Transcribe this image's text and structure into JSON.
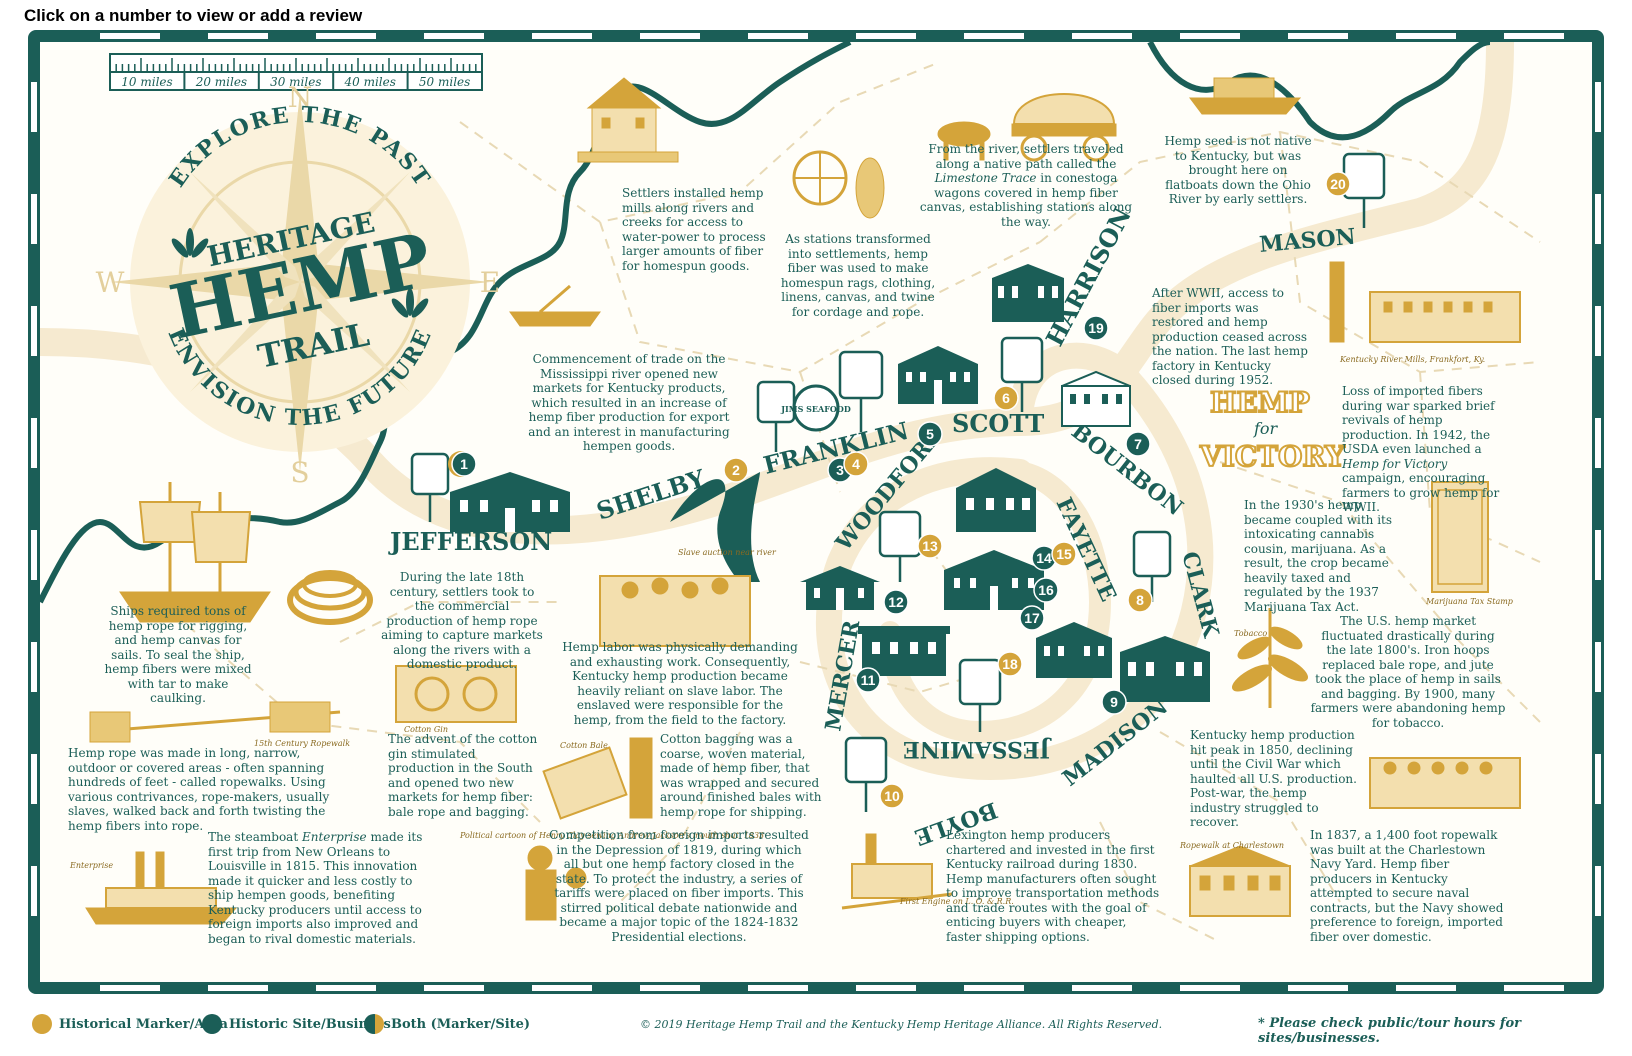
{
  "instruction": "Click on a number to view or add a review",
  "scale": {
    "labels": [
      "10 miles",
      "20 miles",
      "30 miles",
      "40 miles",
      "50 miles"
    ]
  },
  "compass": {
    "north": "N",
    "south": "S",
    "east": "E",
    "west": "W"
  },
  "title": {
    "arc_top": "EXPLORE THE PAST",
    "line1": "HERITAGE",
    "line2": "HEMP",
    "line3": "TRAIL",
    "arc_bottom": "ENVISION THE FUTURE"
  },
  "counties": {
    "jefferson": "JEFFERSON",
    "shelby": "SHELBY",
    "franklin": "FRANKLIN",
    "scott": "SCOTT",
    "harrison": "HARRISON",
    "mason": "MASON",
    "bourbon": "BOURBON",
    "clark": "CLARK",
    "madison": "MADISON",
    "jessamine": "JESSAMINE",
    "boyle": "BOYLE",
    "mercer": "MERCER",
    "woodford": "WOODFORD",
    "fayette": "FAYETTE"
  },
  "notes": {
    "ships": "Ships required tons of hemp rope for rigging, and hemp canvas for sails. To seal the ship, hemp fibers were mixed with tar to make caulking.",
    "late18th": "During the late 18th century, settlers took to the commercial production of hemp rope aiming to capture markets along the rivers with a domestic product.",
    "mississippi": "Commencement of trade on the Mississippi river opened new markets for Kentucky products, which resulted in an increase of hemp fiber production for export and an interest in manufacturing hempen goods.",
    "mills": "Settlers installed hemp mills along rivers and creeks for access to water-power to process larger amounts of fiber for homespun goods.",
    "stations": "As stations transformed into settlements, hemp fiber was used to make homespun rags, clothing, linens, canvas, and twine for cordage and rope.",
    "river_pre": "From the river, settlers traveled along a native path called the ",
    "river_em": "Limestone Trace",
    "river_post": " in conestoga wagons covered in hemp fiber canvas, establishing stations along the way.",
    "seed": "Hemp seed is not native to Kentucky, but was brought here on flatboats down the Ohio River by early settlers.",
    "wwii": "After WWII, access to fiber imports was restored and hemp production ceased across the nation. The last hemp factory in Kentucky closed during 1952.",
    "loss_pre": "Loss of imported fibers during war sparked brief revivals of hemp production. In 1942, the USDA even launched a ",
    "loss_em": "Hemp for Victory",
    "loss_post": " campaign, encouraging farmers to grow hemp for WWII.",
    "1930s": "In the 1930's hemp became coupled with its intoxicating cannabis cousin, marijuana. As a result, the crop became heavily taxed and regulated by the 1937 Marijuana Tax Act.",
    "market": "The U.S. hemp market fluctuated drastically during the late 1800's. Iron hoops replaced bale rope, and jute took the place of hemp in sails and bagging. By 1900, many farmers were abandoning hemp for tobacco.",
    "peak": "Kentucky hemp production hit peak in 1850, declining until the Civil War which haulted all U.S. production. Post-war, the hemp industry struggled to recover.",
    "labor": "Hemp labor was physically demanding and exhausting work. Consequently, Kentucky hemp production became heavily reliant on slave labor. The enslaved were responsible for the hemp, from the field to the factory.",
    "ropewalk": "Hemp rope was made in long, narrow, outdoor or covered areas - often spanning hundreds of feet - called ropewalks. Using various contrivances, rope-makers, usually slaves, walked back and forth twisting the hemp fibers into rope.",
    "gin": "The advent of the cotton gin stimulated production in the South and opened two new markets for hemp fiber: bale rope and bagging.",
    "bagging": "Cotton bagging was a coarse, woven material, made of hemp fiber, that was wrapped and secured around finished bales with hemp rope for shipping.",
    "steamboat_pre": "The steamboat ",
    "steamboat_em": "Enterprise",
    "steamboat_post": " made its first trip from New Orleans to Louisville in 1815. This innovation made it quicker and less costly to ship hempen goods, benefiting Kentucky producers until access to foreign imports also improved and began to rival domestic materials.",
    "competition": "Competition from foreign imports resulted in the Depression of 1819, during which all but one hemp factory closed in the state. To protect the industry, a series of tariffs were placed on fiber imports. This stirred political debate nationwide and became a major topic of the 1824-1832 Presidential elections.",
    "railroad": "Lexington hemp producers chartered and invested in the first Kentucky railroad during 1830. Hemp manufacturers often sought to improve transportation methods and trade routes with the goal of enticing buyers with cheaper, faster shipping options.",
    "navy": "In 1837, a 1,400 foot ropewalk was built at the Charlestown Navy Yard. Hemp fiber producers in Kentucky attempted to secure naval contracts, but the Navy showed preference to foreign, imported fiber over domestic."
  },
  "captions": {
    "enslaved": "Slave auction near river",
    "ropewalk": "15th Century Ropewalk",
    "gin": "Cotton Gin",
    "bale": "Cotton Bale",
    "tobacco": "Tobacco",
    "mill": "Kentucky River Mills, Frankfort, Ky.",
    "enterprise": "Enterprise",
    "engine": "First Engine on L. O. & R.R.",
    "charlestown": "Ropewalk at Charlestown",
    "taxstamp": "Marijuana Tax Stamp",
    "cartoon": "Political cartoon of Henry Clay sewing Andrew Jackson's mouth shut, 1833"
  },
  "victory": {
    "top": "HEMP",
    "mid": "for",
    "bottom": "VICTORY"
  },
  "sign": {
    "brand": "JIMS SEAFOOD"
  },
  "markers": [
    {
      "num": "1",
      "type": "both"
    },
    {
      "num": "2",
      "type": "marker"
    },
    {
      "num": "3",
      "type": "site"
    },
    {
      "num": "4",
      "type": "marker"
    },
    {
      "num": "5",
      "type": "site"
    },
    {
      "num": "6",
      "type": "marker"
    },
    {
      "num": "7",
      "type": "site"
    },
    {
      "num": "8",
      "type": "marker"
    },
    {
      "num": "9",
      "type": "site"
    },
    {
      "num": "10",
      "type": "marker"
    },
    {
      "num": "11",
      "type": "site"
    },
    {
      "num": "12",
      "type": "site"
    },
    {
      "num": "13",
      "type": "marker"
    },
    {
      "num": "14",
      "type": "site"
    },
    {
      "num": "15",
      "type": "marker"
    },
    {
      "num": "16",
      "type": "site"
    },
    {
      "num": "17",
      "type": "site"
    },
    {
      "num": "18",
      "type": "marker"
    },
    {
      "num": "19",
      "type": "site"
    },
    {
      "num": "20",
      "type": "marker"
    }
  ],
  "colors": {
    "gold": "#d4a43a",
    "teal": "#1b5e57",
    "cream": "#f6ead0"
  },
  "legend": {
    "marker": "Historical Marker/Area",
    "site": "Historic Site/Business",
    "both": "Both (Marker/Site)"
  },
  "copyright": "© 2019 Heritage Hemp Trail and the Kentucky Hemp Heritage Alliance. All Rights Reserved.",
  "hours_note": "* Please check public/tour hours for sites/businesses."
}
